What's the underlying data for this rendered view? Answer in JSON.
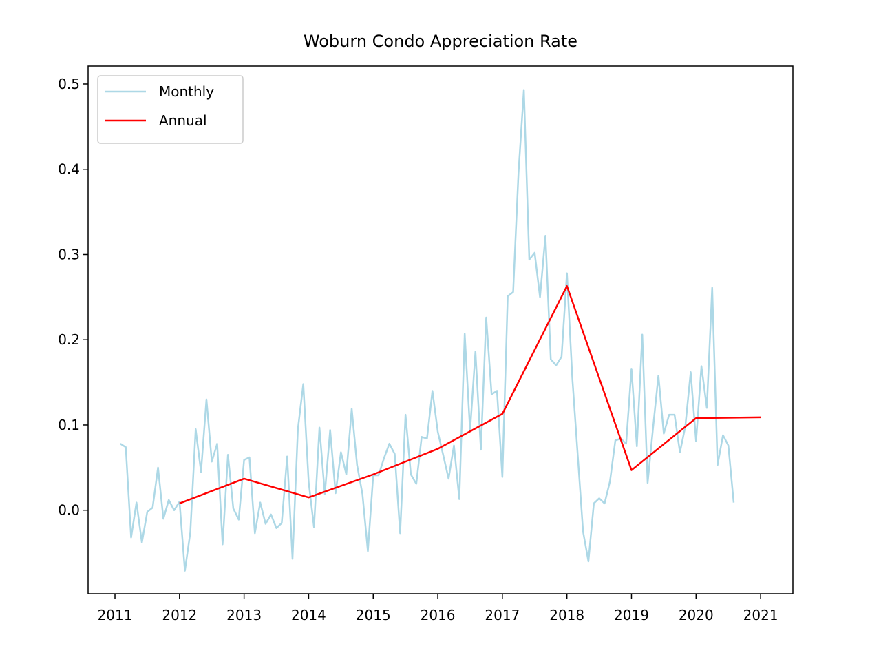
{
  "chart_data": {
    "type": "line",
    "title": "Woburn Condo Appreciation Rate",
    "xlim": [
      2010.584,
      2021.5
    ],
    "xticks": [
      2011,
      2012,
      2013,
      2014,
      2015,
      2016,
      2017,
      2018,
      2019,
      2020,
      2021
    ],
    "ylim": [
      -0.098,
      0.521
    ],
    "yticks": [
      {
        "value": 0,
        "label": "0.0"
      },
      0.1,
      0.2,
      0.3,
      0.4,
      0.5
    ],
    "legend": "upper left",
    "grid": false,
    "series": [
      {
        "name": "Monthly",
        "color": "#add8e6",
        "x": [
          2011.083,
          2011.167,
          2011.25,
          2011.333,
          2011.417,
          2011.5,
          2011.583,
          2011.667,
          2011.75,
          2011.833,
          2011.917,
          2012,
          2012.083,
          2012.167,
          2012.25,
          2012.333,
          2012.417,
          2012.5,
          2012.583,
          2012.667,
          2012.75,
          2012.833,
          2012.917,
          2013,
          2013.083,
          2013.167,
          2013.25,
          2013.333,
          2013.417,
          2013.5,
          2013.583,
          2013.667,
          2013.75,
          2013.833,
          2013.917,
          2014,
          2014.083,
          2014.167,
          2014.25,
          2014.333,
          2014.417,
          2014.5,
          2014.583,
          2014.667,
          2014.75,
          2014.833,
          2014.917,
          2015,
          2015.083,
          2015.167,
          2015.25,
          2015.333,
          2015.417,
          2015.5,
          2015.583,
          2015.667,
          2015.75,
          2015.833,
          2015.917,
          2016,
          2016.083,
          2016.167,
          2016.25,
          2016.333,
          2016.417,
          2016.5,
          2016.583,
          2016.667,
          2016.75,
          2016.833,
          2016.917,
          2017,
          2017.083,
          2017.167,
          2017.25,
          2017.333,
          2017.417,
          2017.5,
          2017.583,
          2017.667,
          2017.75,
          2017.833,
          2017.917,
          2018,
          2018.083,
          2018.167,
          2018.25,
          2018.333,
          2018.417,
          2018.5,
          2018.583,
          2018.667,
          2018.75,
          2018.833,
          2018.917,
          2019,
          2019.083,
          2019.167,
          2019.25,
          2019.333,
          2019.417,
          2019.5,
          2019.583,
          2019.667,
          2019.75,
          2019.833,
          2019.917,
          2020,
          2020.083,
          2020.167,
          2020.25,
          2020.333,
          2020.417,
          2020.5,
          2020.583
        ],
        "values": [
          0.078,
          0.074,
          -0.032,
          0.009,
          -0.038,
          -0.002,
          0.003,
          0.05,
          -0.01,
          0.012,
          0.0,
          0.01,
          -0.071,
          -0.026,
          0.095,
          0.045,
          0.13,
          0.057,
          0.078,
          -0.04,
          0.065,
          0.002,
          -0.011,
          0.059,
          0.062,
          -0.027,
          0.009,
          -0.016,
          -0.005,
          -0.021,
          -0.015,
          0.063,
          -0.057,
          0.095,
          0.148,
          0.033,
          -0.02,
          0.097,
          0.019,
          0.094,
          0.02,
          0.068,
          0.042,
          0.119,
          0.053,
          0.019,
          -0.048,
          0.041,
          0.041,
          0.061,
          0.078,
          0.066,
          -0.027,
          0.112,
          0.042,
          0.031,
          0.086,
          0.084,
          0.14,
          0.092,
          0.065,
          0.037,
          0.076,
          0.013,
          0.207,
          0.093,
          0.186,
          0.071,
          0.226,
          0.136,
          0.14,
          0.039,
          0.251,
          0.256,
          0.396,
          0.493,
          0.294,
          0.302,
          0.25,
          0.322,
          0.177,
          0.17,
          0.18,
          0.278,
          0.156,
          0.065,
          -0.025,
          -0.06,
          0.008,
          0.014,
          0.008,
          0.034,
          0.082,
          0.084,
          0.078,
          0.166,
          0.075,
          0.206,
          0.032,
          0.096,
          0.158,
          0.09,
          0.112,
          0.112,
          0.068,
          0.098,
          0.162,
          0.081,
          0.169,
          0.12,
          0.261,
          0.053,
          0.088,
          0.076,
          0.009
        ]
      },
      {
        "name": "Annual",
        "color": "#ff0000",
        "x": [
          2012,
          2013,
          2014,
          2015,
          2016,
          2017,
          2018,
          2019,
          2020,
          2021
        ],
        "values": [
          0.008,
          0.037,
          0.015,
          0.042,
          0.072,
          0.113,
          0.263,
          0.047,
          0.108,
          0.109
        ]
      }
    ]
  }
}
